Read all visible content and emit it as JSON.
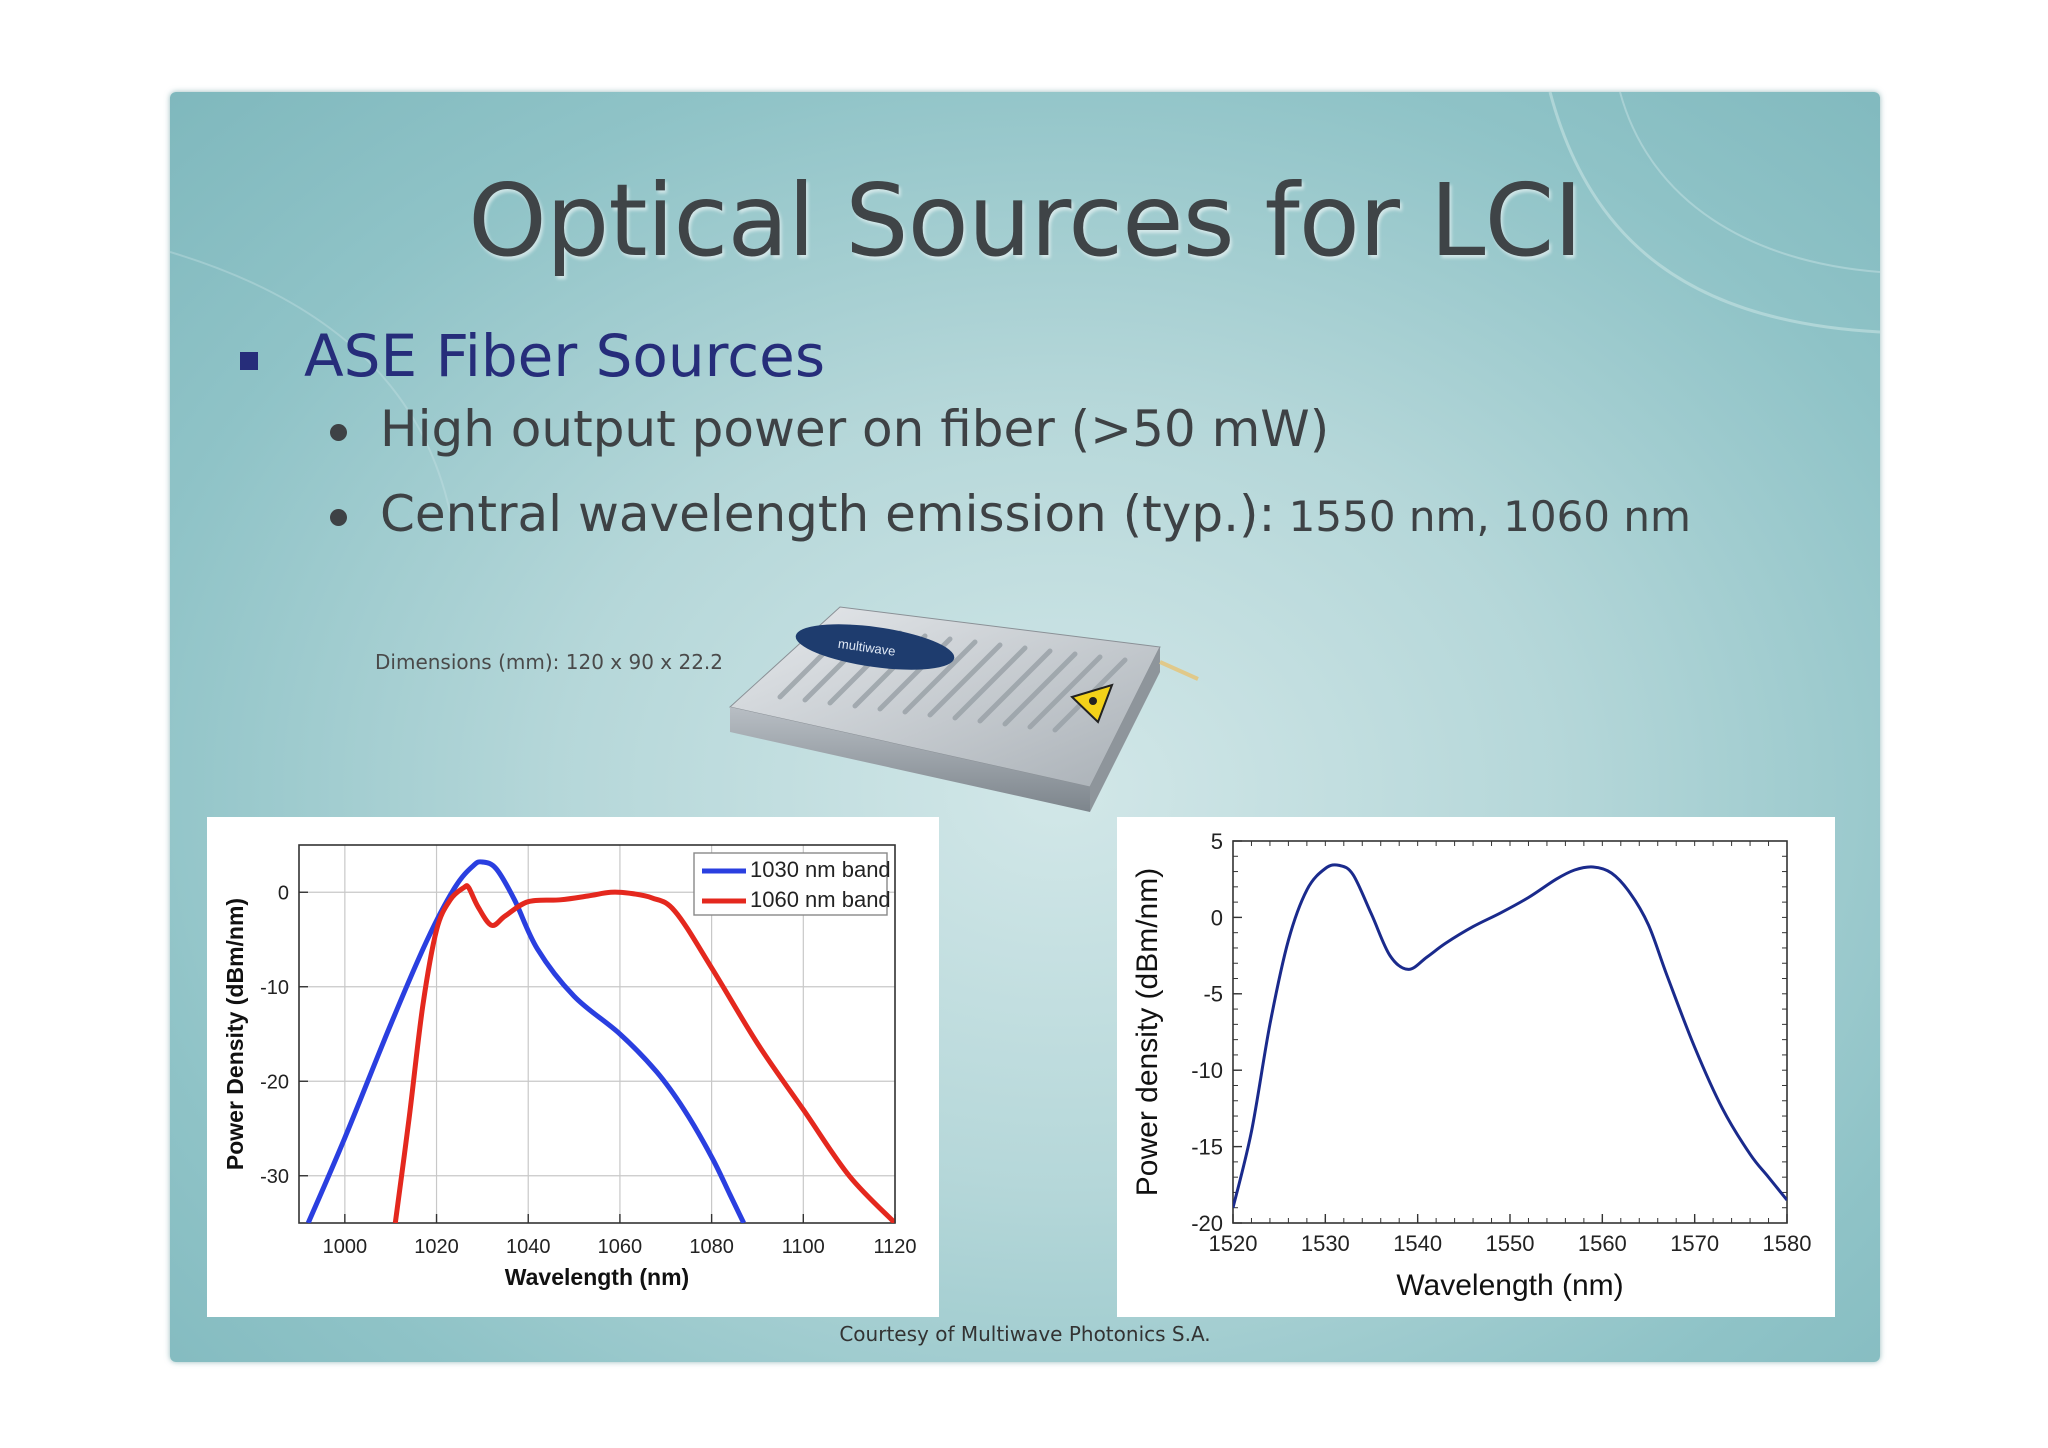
{
  "slide": {
    "title": "Optical Sources for LCI",
    "bullet": "ASE Fiber Sources",
    "sub1": "High output power on fiber (>50 mW)",
    "sub2_main": "Central wavelength emission (typ.):",
    "sub2_values": " 1550 nm, 1060 nm",
    "dimensions": "Dimensions (mm): 120 x 90 x 22.2",
    "device_logo": "multiwave",
    "courtesy": "Courtesy of Multiwave Photonics S.A."
  },
  "colors": {
    "slide_bg": "#9fcdd0",
    "title": "#3f4447",
    "bullet": "#262d7a",
    "series_1030": "#2a3fe0",
    "series_1060": "#e4281e",
    "right_curve": "#1a2a8c"
  },
  "icons": {
    "laser_warning": "laser-warning-icon"
  },
  "chart_data": [
    {
      "type": "line",
      "xlabel": "Wavelength (nm)",
      "ylabel": "Power Density (dBm/nm)",
      "xlim": [
        990,
        1120
      ],
      "ylim": [
        -35,
        5
      ],
      "xticks": [
        1000,
        1020,
        1040,
        1060,
        1080,
        1100,
        1120
      ],
      "yticks": [
        0,
        -10,
        -20,
        -30
      ],
      "grid": true,
      "legend": "top-right",
      "series": [
        {
          "name": "1030 nm band",
          "color": "#2a3fe0",
          "x": [
            992,
            1000,
            1010,
            1018,
            1024,
            1028,
            1030,
            1033,
            1037,
            1042,
            1050,
            1060,
            1068,
            1074,
            1080,
            1084,
            1087
          ],
          "y": [
            -35,
            -26,
            -14,
            -5,
            0.5,
            2.8,
            3.2,
            2.5,
            -0.8,
            -6,
            -11,
            -15,
            -19,
            -23,
            -28,
            -32,
            -35
          ]
        },
        {
          "name": "1060 nm band",
          "color": "#e4281e",
          "x": [
            1011,
            1014,
            1017,
            1020,
            1023,
            1026,
            1027,
            1029,
            1032,
            1035,
            1040,
            1047,
            1053,
            1058,
            1062,
            1067,
            1072,
            1080,
            1090,
            1100,
            1110,
            1120
          ],
          "y": [
            -35,
            -24,
            -12,
            -4,
            -0.8,
            0.5,
            0.5,
            -1.5,
            -3.5,
            -2.5,
            -1,
            -0.8,
            -0.4,
            0,
            -0.1,
            -0.6,
            -2,
            -8,
            -16,
            -23,
            -30,
            -35
          ]
        }
      ]
    },
    {
      "type": "line",
      "xlabel": "Wavelength (nm)",
      "ylabel": "Power density (dBm/nm)",
      "xlim": [
        1520,
        1580
      ],
      "ylim": [
        -20,
        5
      ],
      "xticks": [
        1520,
        1530,
        1540,
        1550,
        1560,
        1570,
        1580
      ],
      "yticks": [
        5,
        0,
        -5,
        -10,
        -15,
        -20
      ],
      "grid": false,
      "series": [
        {
          "color": "#1a2a8c",
          "x": [
            1520,
            1522,
            1524,
            1526,
            1528,
            1530,
            1531.5,
            1533,
            1535,
            1537,
            1539,
            1541,
            1543,
            1546,
            1549,
            1552,
            1555,
            1557,
            1559,
            1561,
            1563,
            1565,
            1567,
            1570,
            1573,
            1576,
            1578,
            1580
          ],
          "y": [
            -19,
            -14,
            -7,
            -1.5,
            1.8,
            3.2,
            3.4,
            2.8,
            0.2,
            -2.5,
            -3.4,
            -2.6,
            -1.7,
            -0.6,
            0.3,
            1.3,
            2.5,
            3.1,
            3.3,
            2.9,
            1.6,
            -0.5,
            -3.8,
            -8.5,
            -12.5,
            -15.5,
            -17,
            -18.5
          ]
        }
      ]
    }
  ]
}
